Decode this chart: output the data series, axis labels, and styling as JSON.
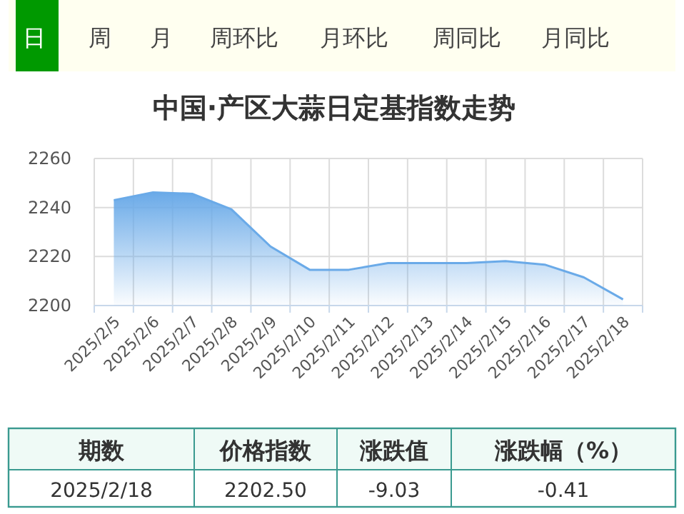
{
  "chart_data": {
    "type": "area",
    "title": "中国·产区大蒜日定基指数走势",
    "categories": [
      "2025/2/5",
      "2025/2/6",
      "2025/2/7",
      "2025/2/8",
      "2025/2/9",
      "2025/2/10",
      "2025/2/11",
      "2025/2/12",
      "2025/2/13",
      "2025/2/14",
      "2025/2/15",
      "2025/2/16",
      "2025/2/17",
      "2025/2/18"
    ],
    "values": [
      2243,
      2246.2,
      2245.6,
      2239.3,
      2224.1,
      2214.6,
      2214.6,
      2217.3,
      2217.3,
      2217.3,
      2218.1,
      2216.7,
      2211.5,
      2202.5
    ],
    "color": "#6aaae8",
    "ylim": [
      2200,
      2260
    ],
    "yticks": [
      2200,
      2220,
      2240,
      2260
    ],
    "grid": true,
    "marker": "none",
    "annotations": [
      "日",
      "周",
      "月",
      "周环比",
      "月环比",
      "周同比",
      "月同比",
      "期数",
      "价格指数",
      "涨跌值",
      "涨跌幅（%）",
      "2025/2/18",
      "2202.50",
      "-9.03",
      "-0.41"
    ]
  }
}
